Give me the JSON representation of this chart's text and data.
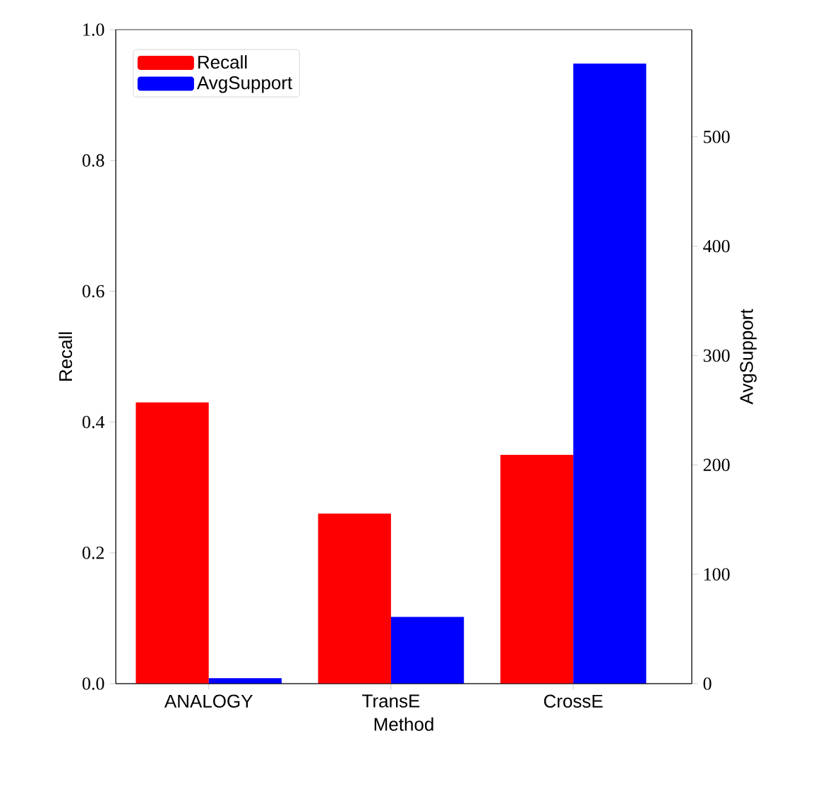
{
  "chart_data": {
    "type": "bar",
    "categories": [
      "ANALOGY",
      "TransE",
      "CrossE"
    ],
    "xlabel": "Method",
    "ylabel": "Recall",
    "y2label": "AvgSupport",
    "series": [
      {
        "name": "Recall",
        "color": "#ff0000",
        "values": [
          0.43,
          0.26,
          0.35
        ]
      },
      {
        "name": "AvgSupport",
        "color": "#0000ff",
        "axis": "y2",
        "values": [
          5,
          61,
          567
        ]
      }
    ],
    "ylim": [
      0,
      1
    ],
    "yticks": [
      {
        "value": 0,
        "label": "0.0"
      },
      0.2,
      0.4,
      0.6,
      0.8,
      {
        "value": 1,
        "label": "1.0"
      }
    ],
    "y2lim": [
      0,
      598
    ],
    "y2ticks": [
      0,
      100,
      200,
      300,
      400,
      500
    ],
    "legend": "top left"
  }
}
